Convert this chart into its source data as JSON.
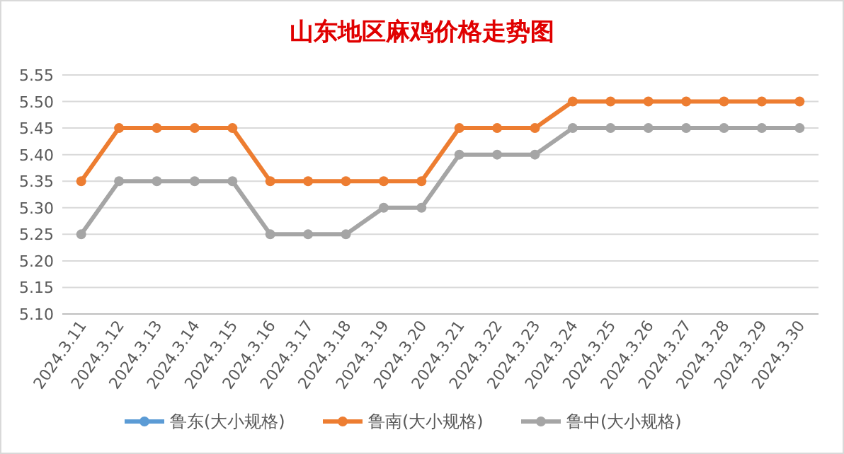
{
  "chart_data": {
    "type": "line",
    "title": "山东地区麻鸡价格走势图",
    "categories": [
      "2024.3.11",
      "2024.3.12",
      "2024.3.13",
      "2024.3.14",
      "2024.3.15",
      "2024.3.16",
      "2024.3.17",
      "2024.3.18",
      "2024.3.19",
      "2024.3.20",
      "2024.3.21",
      "2024.3.22",
      "2024.3.23",
      "2024.3.24",
      "2024.3.25",
      "2024.3.26",
      "2024.3.27",
      "2024.3.28",
      "2024.3.29",
      "2024.3.30"
    ],
    "series": [
      {
        "name": "鲁东(大小规格)",
        "color": "#5b9bd5",
        "values": [
          null,
          null,
          null,
          null,
          null,
          null,
          null,
          null,
          null,
          null,
          null,
          null,
          null,
          null,
          null,
          null,
          null,
          null,
          null,
          null
        ]
      },
      {
        "name": "鲁南(大小规格)",
        "color": "#ed7d31",
        "values": [
          5.35,
          5.45,
          5.45,
          5.45,
          5.45,
          5.35,
          5.35,
          5.35,
          5.35,
          5.35,
          5.45,
          5.45,
          5.45,
          5.5,
          5.5,
          5.5,
          5.5,
          5.5,
          5.5,
          5.5
        ]
      },
      {
        "name": "鲁中(大小规格)",
        "color": "#a5a5a5",
        "values": [
          5.25,
          5.35,
          5.35,
          5.35,
          5.35,
          5.25,
          5.25,
          5.25,
          5.3,
          5.3,
          5.4,
          5.4,
          5.4,
          5.45,
          5.45,
          5.45,
          5.45,
          5.45,
          5.45,
          5.45
        ]
      }
    ],
    "ylim": [
      5.1,
      5.55
    ],
    "yticks": [
      {
        "value": 5.1,
        "label": "5.10"
      },
      {
        "value": 5.15,
        "label": "5.15"
      },
      {
        "value": 5.2,
        "label": "5.20"
      },
      {
        "value": 5.25,
        "label": "5.25"
      },
      {
        "value": 5.3,
        "label": "5.30"
      },
      {
        "value": 5.35,
        "label": "5.35"
      },
      {
        "value": 5.4,
        "label": "5.40"
      },
      {
        "value": 5.45,
        "label": "5.45"
      },
      {
        "value": 5.5,
        "label": "5.50"
      },
      {
        "value": 5.55,
        "label": "5.55"
      }
    ],
    "grid": "y",
    "legend": "bottom",
    "marker": "circle",
    "line_style": "solid"
  }
}
